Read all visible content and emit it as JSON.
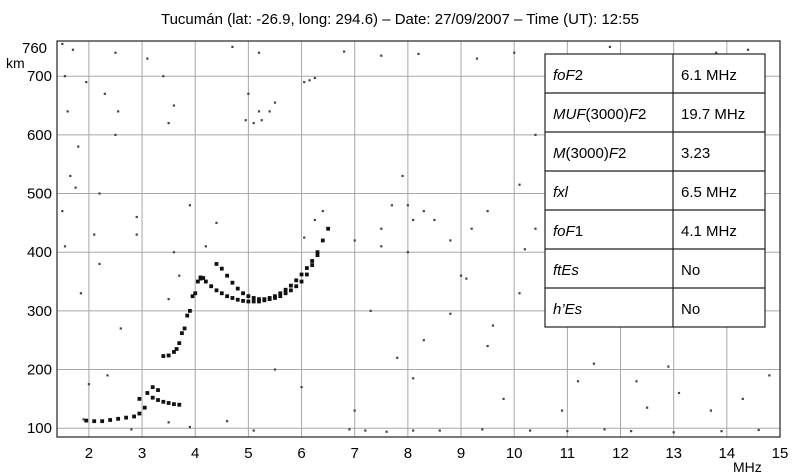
{
  "chart_data": {
    "type": "scatter",
    "title": "Tucumán (lat: -26.9,  long: 294.6) – Date: 27/09/2007 – Time (UT): 12:55",
    "xlabel": "MHz",
    "ylabel": "km",
    "xlim": [
      1.4,
      15
    ],
    "ylim": [
      85,
      760
    ],
    "xticks": [
      2,
      3,
      4,
      5,
      6,
      7,
      8,
      9,
      10,
      11,
      12,
      13,
      14,
      15
    ],
    "yticks": [
      100,
      200,
      300,
      400,
      500,
      600,
      700
    ],
    "ytop_label": "760",
    "grid": true,
    "series": [
      {
        "trace": "low-Es",
        "points": [
          [
            1.95,
            113
          ],
          [
            2.1,
            112
          ],
          [
            2.25,
            112
          ],
          [
            2.4,
            114
          ],
          [
            2.55,
            116
          ],
          [
            2.7,
            118
          ],
          [
            2.85,
            120
          ],
          [
            2.95,
            125
          ],
          [
            3.05,
            135
          ],
          [
            2.95,
            150
          ],
          [
            3.1,
            160
          ],
          [
            3.2,
            152
          ],
          [
            3.3,
            148
          ],
          [
            3.4,
            145
          ],
          [
            3.5,
            143
          ],
          [
            3.6,
            141
          ],
          [
            3.7,
            140
          ],
          [
            3.2,
            170
          ],
          [
            3.3,
            165
          ]
        ]
      },
      {
        "trace": "F1",
        "points": [
          [
            3.4,
            223
          ],
          [
            3.5,
            224
          ],
          [
            3.6,
            230
          ],
          [
            3.7,
            245
          ],
          [
            3.8,
            270
          ],
          [
            3.9,
            300
          ],
          [
            4.0,
            330
          ],
          [
            4.05,
            350
          ],
          [
            4.1,
            357
          ],
          [
            4.15,
            356
          ],
          [
            3.65,
            235
          ],
          [
            3.75,
            262
          ],
          [
            3.85,
            292
          ],
          [
            3.95,
            325
          ]
        ]
      },
      {
        "trace": "F2-ordinary",
        "points": [
          [
            4.1,
            355
          ],
          [
            4.2,
            350
          ],
          [
            4.3,
            342
          ],
          [
            4.4,
            335
          ],
          [
            4.5,
            330
          ],
          [
            4.6,
            325
          ],
          [
            4.7,
            322
          ],
          [
            4.8,
            319
          ],
          [
            4.9,
            317
          ],
          [
            5.0,
            316
          ],
          [
            5.1,
            316
          ],
          [
            5.2,
            316
          ],
          [
            5.3,
            318
          ],
          [
            5.4,
            320
          ],
          [
            5.5,
            322
          ],
          [
            5.6,
            325
          ],
          [
            5.7,
            330
          ],
          [
            5.8,
            335
          ],
          [
            5.9,
            342
          ],
          [
            6.0,
            350
          ],
          [
            6.1,
            362
          ],
          [
            6.2,
            378
          ],
          [
            6.3,
            395
          ]
        ]
      },
      {
        "trace": "F2-extraordinary",
        "points": [
          [
            4.4,
            380
          ],
          [
            4.5,
            372
          ],
          [
            4.6,
            360
          ],
          [
            4.7,
            348
          ],
          [
            4.8,
            338
          ],
          [
            4.9,
            330
          ],
          [
            5.0,
            325
          ],
          [
            5.1,
            322
          ],
          [
            5.2,
            320
          ],
          [
            5.3,
            320
          ],
          [
            5.4,
            322
          ],
          [
            5.5,
            325
          ],
          [
            5.6,
            330
          ],
          [
            5.7,
            336
          ],
          [
            5.8,
            343
          ],
          [
            5.9,
            352
          ],
          [
            6.0,
            362
          ],
          [
            6.1,
            373
          ],
          [
            6.2,
            385
          ],
          [
            6.3,
            400
          ],
          [
            6.4,
            420
          ],
          [
            6.5,
            440
          ]
        ]
      },
      {
        "trace": "noise",
        "points": [
          [
            1.5,
            755
          ],
          [
            1.7,
            745
          ],
          [
            1.55,
            700
          ],
          [
            1.95,
            690
          ],
          [
            1.6,
            640
          ],
          [
            1.8,
            580
          ],
          [
            1.5,
            470
          ],
          [
            1.65,
            530
          ],
          [
            1.75,
            510
          ],
          [
            1.55,
            410
          ],
          [
            1.85,
            330
          ],
          [
            2.3,
            670
          ],
          [
            2.5,
            600
          ],
          [
            2.55,
            640
          ],
          [
            2.2,
            500
          ],
          [
            2.1,
            430
          ],
          [
            2.2,
            380
          ],
          [
            2.9,
            430
          ],
          [
            2.9,
            460
          ],
          [
            3.5,
            620
          ],
          [
            3.6,
            650
          ],
          [
            3.4,
            700
          ],
          [
            3.1,
            730
          ],
          [
            3.6,
            400
          ],
          [
            3.7,
            360
          ],
          [
            3.5,
            320
          ],
          [
            2.6,
            270
          ],
          [
            3.9,
            480
          ],
          [
            4.2,
            410
          ],
          [
            4.4,
            450
          ],
          [
            5.0,
            670
          ],
          [
            5.2,
            640
          ],
          [
            5.4,
            640
          ],
          [
            5.5,
            655
          ],
          [
            4.95,
            625
          ],
          [
            5.1,
            620
          ],
          [
            5.25,
            625
          ],
          [
            6.05,
            690
          ],
          [
            6.15,
            693
          ],
          [
            6.25,
            697
          ],
          [
            6.05,
            425
          ],
          [
            6.25,
            455
          ],
          [
            6.4,
            470
          ],
          [
            7.0,
            420
          ],
          [
            7.5,
            410
          ],
          [
            7.5,
            440
          ],
          [
            7.7,
            480
          ],
          [
            7.9,
            530
          ],
          [
            8.0,
            480
          ],
          [
            8.1,
            455
          ],
          [
            8.3,
            470
          ],
          [
            8.5,
            455
          ],
          [
            8.8,
            420
          ],
          [
            8.0,
            400
          ],
          [
            9.2,
            440
          ],
          [
            9.5,
            470
          ],
          [
            9.1,
            355
          ],
          [
            8.8,
            295
          ],
          [
            9.0,
            360
          ],
          [
            8.3,
            250
          ],
          [
            7.3,
            300
          ],
          [
            8.1,
            185
          ],
          [
            7.8,
            220
          ],
          [
            9.5,
            240
          ],
          [
            9.6,
            275
          ],
          [
            10.1,
            330
          ],
          [
            10.2,
            405
          ],
          [
            10.4,
            440
          ],
          [
            10.1,
            515
          ],
          [
            10.4,
            600
          ],
          [
            11.8,
            750
          ],
          [
            12.4,
            680
          ],
          [
            12.9,
            720
          ],
          [
            13.8,
            740
          ],
          [
            14.4,
            745
          ],
          [
            11.2,
            180
          ],
          [
            12.1,
            280
          ],
          [
            12.9,
            205
          ],
          [
            13.2,
            310
          ],
          [
            12.5,
            135
          ],
          [
            13.7,
            130
          ],
          [
            14.3,
            150
          ],
          [
            14.8,
            190
          ],
          [
            11.5,
            210
          ],
          [
            10.9,
            130
          ],
          [
            12.3,
            180
          ],
          [
            13.1,
            160
          ],
          [
            2.0,
            175
          ],
          [
            2.35,
            190
          ],
          [
            4.7,
            750
          ],
          [
            5.2,
            740
          ],
          [
            6.8,
            742
          ],
          [
            7.5,
            735
          ],
          [
            8.2,
            738
          ],
          [
            9.3,
            730
          ],
          [
            10.0,
            740
          ],
          [
            2.5,
            740
          ],
          [
            6.0,
            170
          ],
          [
            5.5,
            200
          ],
          [
            7.0,
            130
          ],
          [
            9.8,
            150
          ],
          [
            1.9,
            115
          ],
          [
            3.5,
            110
          ],
          [
            4.6,
            112
          ],
          [
            6.9,
            98
          ],
          [
            7.2,
            96
          ],
          [
            7.6,
            94
          ],
          [
            8.1,
            96
          ],
          [
            8.6,
            96
          ],
          [
            9.4,
            98
          ],
          [
            10.3,
            96
          ],
          [
            11.0,
            95
          ],
          [
            11.7,
            98
          ],
          [
            12.2,
            95
          ],
          [
            13.0,
            93
          ],
          [
            13.9,
            95
          ],
          [
            14.6,
            97
          ],
          [
            5.1,
            96
          ],
          [
            3.9,
            102
          ],
          [
            2.8,
            98
          ]
        ]
      }
    ]
  },
  "table": {
    "rows": [
      {
        "param": [
          {
            "t": "fo",
            "i": true
          },
          {
            "t": "F",
            "i": true
          },
          {
            "t": "2",
            "i": false
          }
        ],
        "value": "6.1 MHz"
      },
      {
        "param": [
          {
            "t": "MUF",
            "i": true
          },
          {
            "t": "(3000)",
            "i": false
          },
          {
            "t": "F",
            "i": true
          },
          {
            "t": "2",
            "i": false
          }
        ],
        "value": "19.7 MHz"
      },
      {
        "param": [
          {
            "t": "M",
            "i": true
          },
          {
            "t": "(3000)",
            "i": false
          },
          {
            "t": "F",
            "i": true
          },
          {
            "t": "2",
            "i": false
          }
        ],
        "value": "3.23"
      },
      {
        "param": [
          {
            "t": "fxl",
            "i": true
          }
        ],
        "value": "6.5 MHz"
      },
      {
        "param": [
          {
            "t": "fo",
            "i": true
          },
          {
            "t": "F",
            "i": true
          },
          {
            "t": "1",
            "i": false
          }
        ],
        "value": "4.1 MHz"
      },
      {
        "param": [
          {
            "t": "ftEs",
            "i": true
          }
        ],
        "value": "No"
      },
      {
        "param": [
          {
            "t": "h’Es",
            "i": true
          }
        ],
        "value": "No"
      }
    ]
  }
}
